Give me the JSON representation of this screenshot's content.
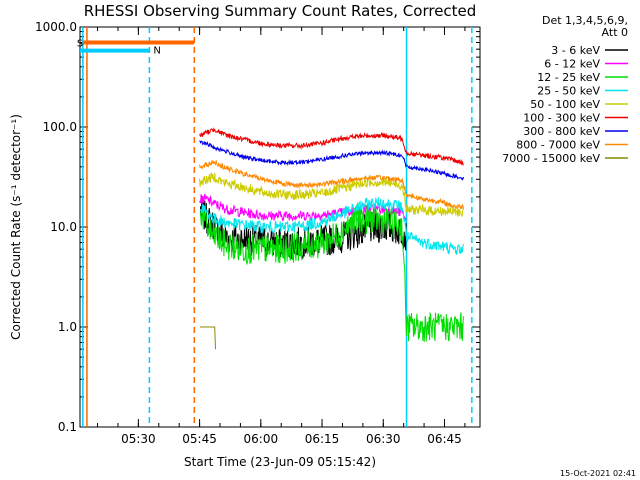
{
  "chart_data": {
    "type": "line",
    "title": "RHESSI Observing Summary Count Rates, Corrected",
    "xlabel": "Start Time (23-Jun-09 05:15:42)",
    "ylabel": "Corrected Count Rate (s⁻¹ detector⁻¹)",
    "x_unit": "minutes after 05:15:42 UT",
    "x_range": [
      0,
      98
    ],
    "y_scale": "log",
    "ylim": [
      0.1,
      1000
    ],
    "x_ticks": [
      {
        "value": 14.3,
        "label": "05:30"
      },
      {
        "value": 29.3,
        "label": "05:45"
      },
      {
        "value": 44.3,
        "label": "06:00"
      },
      {
        "value": 59.3,
        "label": "06:15"
      },
      {
        "value": 74.3,
        "label": "06:30"
      },
      {
        "value": 89.3,
        "label": "06:45"
      }
    ],
    "y_ticks": [
      {
        "value": 0.1,
        "label": "0.1"
      },
      {
        "value": 1,
        "label": "1.0"
      },
      {
        "value": 10,
        "label": "10.0"
      },
      {
        "value": 100,
        "label": "100.0"
      },
      {
        "value": 1000,
        "label": "1000.0"
      }
    ],
    "legend": {
      "position": "top-right outside",
      "header": [
        "Det 1,3,4,5,6,9,",
        "Att 0"
      ]
    },
    "series": [
      {
        "name": "3 - 6 keV",
        "color": "#000000",
        "noise": 0.16,
        "points": [
          [
            29.5,
            15
          ],
          [
            31,
            12
          ],
          [
            33,
            10
          ],
          [
            35,
            8
          ],
          [
            38,
            7.5
          ],
          [
            42,
            7.5
          ],
          [
            46,
            7
          ],
          [
            50,
            6.8
          ],
          [
            55,
            7
          ],
          [
            60,
            7.3
          ],
          [
            65,
            8
          ],
          [
            70,
            9.5
          ],
          [
            74,
            10
          ],
          [
            76,
            10
          ],
          [
            79,
            9
          ],
          [
            80,
            8
          ]
        ]
      },
      {
        "name": "6 - 12 keV",
        "color": "#ff00ff",
        "noise": 0.05,
        "points": [
          [
            29.3,
            19
          ],
          [
            31,
            19
          ],
          [
            33,
            17
          ],
          [
            36,
            15
          ],
          [
            40,
            14
          ],
          [
            45,
            13
          ],
          [
            50,
            13
          ],
          [
            55,
            13
          ],
          [
            60,
            13.2
          ],
          [
            65,
            14
          ],
          [
            70,
            15
          ],
          [
            75,
            15
          ],
          [
            79,
            14
          ],
          [
            80,
            11
          ]
        ]
      },
      {
        "name": "12 - 25 keV",
        "color": "#00dd00",
        "noise": 0.15,
        "points": [
          [
            29.5,
            15
          ],
          [
            31,
            10
          ],
          [
            33,
            8
          ],
          [
            36,
            6.5
          ],
          [
            40,
            6
          ],
          [
            45,
            6
          ],
          [
            50,
            6
          ],
          [
            55,
            6.5
          ],
          [
            60,
            7
          ],
          [
            64,
            9
          ],
          [
            68,
            12
          ],
          [
            72,
            12
          ],
          [
            76,
            11
          ],
          [
            79,
            10
          ],
          [
            80,
            1
          ],
          [
            94,
            1
          ]
        ]
      },
      {
        "name": "25 - 50 keV",
        "color": "#00e5ee",
        "noise": 0.06,
        "points": [
          [
            29.5,
            16
          ],
          [
            31,
            14
          ],
          [
            33,
            12
          ],
          [
            36,
            11
          ],
          [
            40,
            10.5
          ],
          [
            45,
            10
          ],
          [
            50,
            10
          ],
          [
            55,
            10.3
          ],
          [
            60,
            11.5
          ],
          [
            65,
            14
          ],
          [
            70,
            17
          ],
          [
            74,
            17.5
          ],
          [
            79,
            16
          ],
          [
            80,
            8
          ],
          [
            84,
            7
          ],
          [
            88,
            6.5
          ],
          [
            92,
            6
          ],
          [
            94,
            6
          ]
        ]
      },
      {
        "name": "50 - 100 keV",
        "color": "#cccc00",
        "noise": 0.05,
        "points": [
          [
            29.3,
            28
          ],
          [
            31,
            30
          ],
          [
            33,
            32
          ],
          [
            35,
            28
          ],
          [
            40,
            25
          ],
          [
            45,
            22
          ],
          [
            50,
            21
          ],
          [
            55,
            21
          ],
          [
            60,
            22
          ],
          [
            65,
            25
          ],
          [
            70,
            28
          ],
          [
            75,
            28
          ],
          [
            79,
            26
          ],
          [
            80,
            15
          ],
          [
            94,
            14
          ]
        ]
      },
      {
        "name": "100 - 300 keV",
        "color": "#ee0000",
        "noise": 0.025,
        "points": [
          [
            29.3,
            82
          ],
          [
            31,
            88
          ],
          [
            33,
            95
          ],
          [
            35,
            85
          ],
          [
            40,
            75
          ],
          [
            45,
            68
          ],
          [
            50,
            65
          ],
          [
            55,
            65
          ],
          [
            60,
            70
          ],
          [
            65,
            78
          ],
          [
            70,
            82
          ],
          [
            75,
            82
          ],
          [
            79,
            76
          ],
          [
            80,
            55
          ],
          [
            84,
            52
          ],
          [
            88,
            50
          ],
          [
            92,
            46
          ],
          [
            94,
            44
          ]
        ]
      },
      {
        "name": "300 - 800 keV",
        "color": "#0000ee",
        "noise": 0.02,
        "points": [
          [
            29.3,
            70
          ],
          [
            31,
            68
          ],
          [
            33,
            62
          ],
          [
            37,
            55
          ],
          [
            40,
            50
          ],
          [
            45,
            46
          ],
          [
            50,
            44
          ],
          [
            55,
            45
          ],
          [
            60,
            48
          ],
          [
            65,
            52
          ],
          [
            70,
            55
          ],
          [
            75,
            55
          ],
          [
            79,
            52
          ],
          [
            80,
            40
          ],
          [
            84,
            38
          ],
          [
            88,
            35
          ],
          [
            92,
            32
          ],
          [
            94,
            31
          ]
        ]
      },
      {
        "name": "800 - 7000 keV",
        "color": "#ff8800",
        "noise": 0.025,
        "points": [
          [
            29.3,
            40
          ],
          [
            31,
            42
          ],
          [
            33,
            45
          ],
          [
            35,
            40
          ],
          [
            40,
            34
          ],
          [
            45,
            30
          ],
          [
            50,
            27
          ],
          [
            55,
            26
          ],
          [
            60,
            27
          ],
          [
            65,
            29
          ],
          [
            70,
            31
          ],
          [
            75,
            31
          ],
          [
            79,
            29
          ],
          [
            80,
            21
          ],
          [
            84,
            19
          ],
          [
            88,
            18
          ],
          [
            92,
            16
          ],
          [
            94,
            16
          ]
        ]
      },
      {
        "name": "7000 - 15000 keV",
        "color": "#888800",
        "noise": 0,
        "points": [
          [
            29.4,
            1.0
          ],
          [
            33,
            1.0
          ],
          [
            33.2,
            0.6
          ],
          [
            36,
            null
          ]
        ]
      }
    ],
    "attenuator_markers": [
      {
        "label": "S",
        "color": "#ff6600",
        "value": 700,
        "from": 0.7,
        "to": 28
      },
      {
        "label": "N",
        "color": "#00ccff",
        "value": 580,
        "from": 0,
        "to": 17
      }
    ],
    "vertical_lines": [
      {
        "x": 0.7,
        "color": "#00ccff",
        "style": "solid"
      },
      {
        "x": 1.7,
        "color": "#ff6600",
        "style": "solid"
      },
      {
        "x": 17,
        "color": "#00ccff",
        "style": "dashed"
      },
      {
        "x": 28,
        "color": "#ff6600",
        "style": "dashed"
      },
      {
        "x": 80,
        "color": "#00ccff",
        "style": "solid"
      },
      {
        "x": 96,
        "color": "#00ccff",
        "style": "dashed"
      }
    ],
    "footer_timestamp": "15-Oct-2021 02:41"
  }
}
